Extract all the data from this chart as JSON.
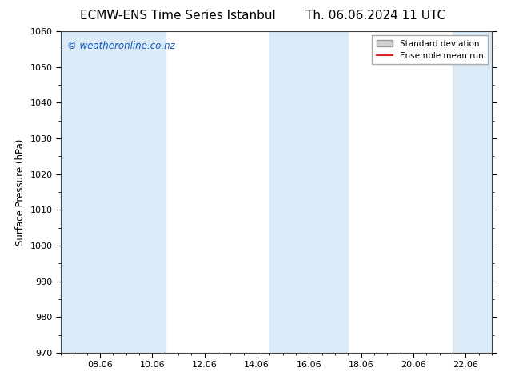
{
  "title_left": "ECMW-ENS Time Series Istanbul",
  "title_right": "Th. 06.06.2024 11 UTC",
  "ylabel": "Surface Pressure (hPa)",
  "ylim": [
    970,
    1060
  ],
  "yticks": [
    970,
    980,
    990,
    1000,
    1010,
    1020,
    1030,
    1040,
    1050,
    1060
  ],
  "xlim": [
    6.5,
    23.0
  ],
  "xticks": [
    8,
    10,
    12,
    14,
    16,
    18,
    20,
    22
  ],
  "xticklabels": [
    "08.06",
    "10.06",
    "12.06",
    "14.06",
    "16.06",
    "18.06",
    "20.06",
    "22.06"
  ],
  "shaded_bands": [
    {
      "xmin": 6.5,
      "xmax": 10.5
    },
    {
      "xmin": 14.5,
      "xmax": 17.5
    },
    {
      "xmin": 21.5,
      "xmax": 23.0
    }
  ],
  "shade_color": "#daeaf7",
  "watermark_text": "© weatheronline.co.nz",
  "watermark_color": "#1155bb",
  "watermark_fontsize": 8.5,
  "legend_std_label": "Standard deviation",
  "legend_ens_label": "Ensemble mean run",
  "legend_std_facecolor": "#d0d0d0",
  "legend_std_edgecolor": "#999999",
  "legend_ens_color": "#dd2222",
  "background_color": "#ffffff",
  "axes_bg_color": "#ffffff",
  "title_fontsize": 11,
  "ylabel_fontsize": 8.5,
  "tick_fontsize": 8
}
